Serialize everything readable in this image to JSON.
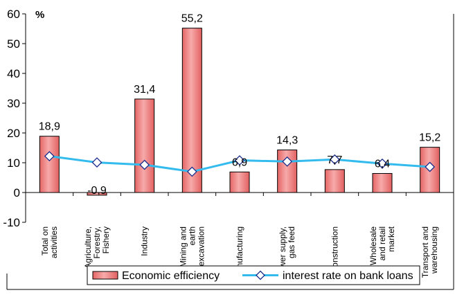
{
  "chart_data": {
    "type": "bar",
    "ylabel": "%",
    "ylim": [
      -10,
      60
    ],
    "yticks": [
      -10,
      0,
      10,
      20,
      30,
      40,
      50,
      60
    ],
    "grid": false,
    "legend_position": "bottom",
    "categories": [
      [
        "Total on",
        "activities"
      ],
      [
        "Agriculture,",
        "Forestry,",
        "Fishery"
      ],
      [
        "Industry"
      ],
      [
        "Mining and",
        "earth",
        "excavation"
      ],
      [
        "Manufacturing"
      ],
      [
        "Power supply,",
        "gas feed"
      ],
      [
        "Construction"
      ],
      [
        "Wholesale",
        "and retail",
        "market"
      ],
      [
        "Transport and",
        "warehousing"
      ]
    ],
    "series": [
      {
        "name": "Economic efficiency",
        "type": "bar",
        "color": "#f08080",
        "values": [
          18.9,
          -0.9,
          31.4,
          55.2,
          6.9,
          14.3,
          7.7,
          6.4,
          15.2
        ],
        "labels": [
          "18,9",
          "-0,9",
          "31,4",
          "55,2",
          "6,9",
          "14,3",
          "7,7",
          "6,4",
          "15,2"
        ]
      },
      {
        "name": "interest rate on bank loans",
        "type": "line",
        "color": "#33bbee",
        "marker": "diamond",
        "values": [
          12.2,
          10.1,
          9.3,
          7.0,
          10.8,
          10.4,
          11.1,
          9.7,
          8.6
        ]
      }
    ]
  }
}
